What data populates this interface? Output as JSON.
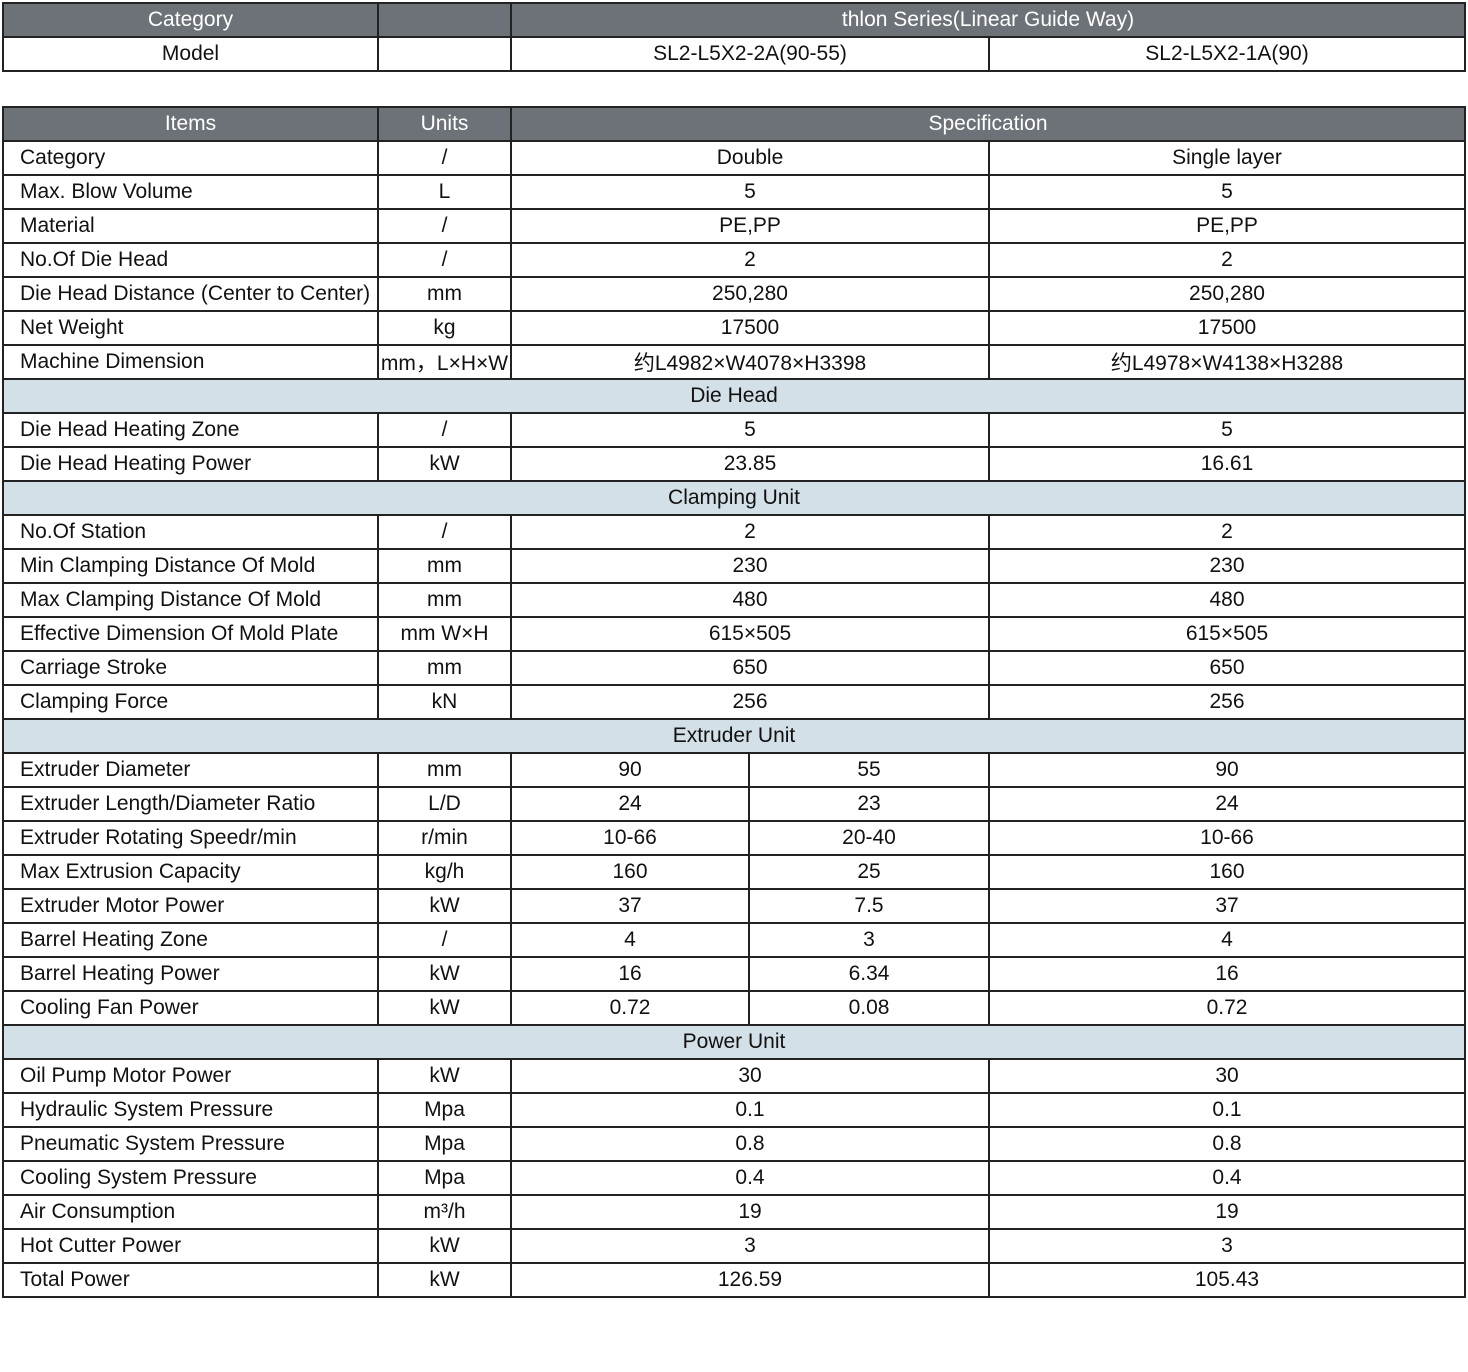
{
  "top_table": {
    "category_label": "Category",
    "series": "thlon Series(Linear Guide Way)",
    "model_label": "Model",
    "models": [
      "SL2-L5X2-2A(90-55)",
      "SL2-L5X2-1A(90)"
    ]
  },
  "spec_table": {
    "header": [
      "Items",
      "Units",
      "Specification"
    ],
    "rows": [
      [
        "Category",
        "/",
        "Double",
        "Single layer"
      ],
      [
        "Max. Blow Volume",
        "L",
        "5",
        "5"
      ],
      [
        "Material",
        "/",
        "PE,PP",
        "PE,PP"
      ],
      [
        "No.Of Die Head",
        "/",
        "2",
        "2"
      ],
      [
        "Die Head Distance (Center to Center)",
        "mm",
        "250,280",
        "250,280"
      ],
      [
        "Net Weight",
        "kg",
        "17500",
        "17500"
      ],
      [
        "Machine Dimension",
        "mm，L×H×W",
        "约L4982×W4078×H3398",
        "约L4978×W4138×H3288"
      ],
      [
        "Die Head"
      ],
      [
        "Die Head Heating Zone",
        "/",
        "5",
        "5"
      ],
      [
        "Die Head Heating Power",
        "kW",
        "23.85",
        "16.61"
      ],
      [
        "Clamping Unit"
      ],
      [
        "No.Of Station",
        "/",
        "2",
        "2"
      ],
      [
        "Min Clamping Distance Of Mold",
        "mm",
        "230",
        "230"
      ],
      [
        "Max Clamping Distance Of Mold",
        "mm",
        "480",
        "480"
      ],
      [
        "Effective Dimension Of Mold Plate",
        "mm W×H",
        "615×505",
        "615×505"
      ],
      [
        "Carriage  Stroke",
        "mm",
        "650",
        "650"
      ],
      [
        "Clamping Force",
        "kN",
        "256",
        "256"
      ],
      [
        "Extruder Unit"
      ],
      [
        "Extruder Diameter",
        "mm",
        "90",
        "55",
        "90"
      ],
      [
        "Extruder Length/Diameter Ratio",
        "L/D",
        "24",
        "23",
        "24"
      ],
      [
        "Extruder Rotating Speedr/min",
        "r/min",
        "10-66",
        "20-40",
        "10-66"
      ],
      [
        "Max Extrusion Capacity",
        "kg/h",
        "160",
        "25",
        "160"
      ],
      [
        "Extruder Motor Power",
        "kW",
        "37",
        "7.5",
        "37"
      ],
      [
        "Barrel Heating Zone",
        "/",
        "4",
        "3",
        "4"
      ],
      [
        "Barrel Heating Power",
        "kW",
        "16",
        "6.34",
        "16"
      ],
      [
        "Cooling Fan Power",
        "kW",
        "0.72",
        "0.08",
        "0.72"
      ],
      [
        "Power Unit"
      ],
      [
        "Oil Pump Motor Power",
        "kW",
        "30",
        "30"
      ],
      [
        "Hydraulic System Pressure",
        "Mpa",
        "0.1",
        "0.1"
      ],
      [
        "Pneumatic System Pressure",
        "Mpa",
        "0.8",
        "0.8"
      ],
      [
        "Cooling System Pressure",
        "Mpa",
        "0.4",
        "0.4"
      ],
      [
        "Air Consumption",
        "m³/h",
        "19",
        "19"
      ],
      [
        "Hot Cutter Power",
        "kW",
        "3",
        "3"
      ],
      [
        "Total Power",
        "kW",
        "126.59",
        "105.43"
      ]
    ]
  }
}
